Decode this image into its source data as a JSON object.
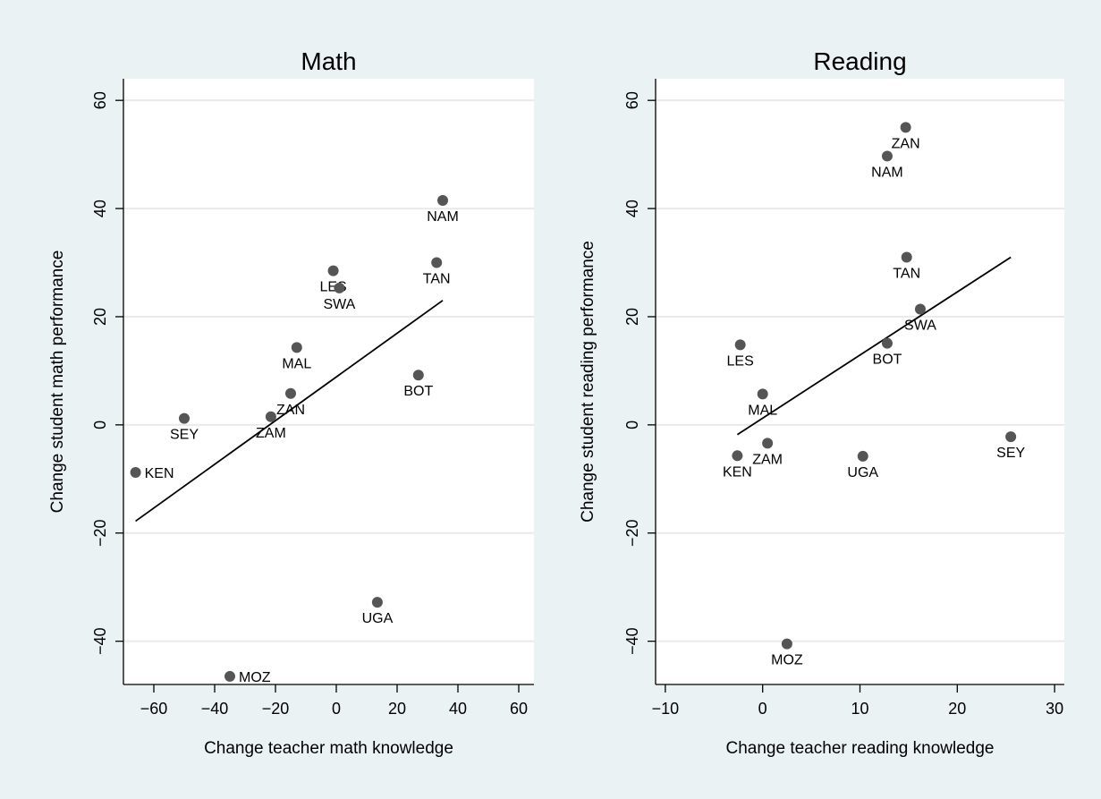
{
  "style": {
    "outer_background": "#eaf2f3",
    "plot_background": "#ffffff",
    "gridline_color": "#eaeaea",
    "point_color": "#555555",
    "line_color": "#000000"
  },
  "chart_data": [
    {
      "type": "scatter",
      "title": "Math",
      "xlabel": "Change teacher math knowledge",
      "ylabel": "Change student math performance",
      "xlim": [
        -70,
        65
      ],
      "ylim": [
        -48,
        64
      ],
      "xticks": [
        -60,
        -40,
        -20,
        0,
        20,
        40,
        60
      ],
      "yticks": [
        -40,
        -20,
        0,
        20,
        40,
        60
      ],
      "grid": true,
      "points": [
        {
          "label": "NAM",
          "x": 35,
          "y": 41.5,
          "label_pos": "below"
        },
        {
          "label": "TAN",
          "x": 33,
          "y": 30,
          "label_pos": "below"
        },
        {
          "label": "LES",
          "x": -1,
          "y": 28.5,
          "label_pos": "below"
        },
        {
          "label": "SWA",
          "x": 1,
          "y": 25.3,
          "label_pos": "below"
        },
        {
          "label": "MAL",
          "x": -13,
          "y": 14.3,
          "label_pos": "below"
        },
        {
          "label": "BOT",
          "x": 27,
          "y": 9.2,
          "label_pos": "below"
        },
        {
          "label": "ZAN",
          "x": -15,
          "y": 5.8,
          "label_pos": "below"
        },
        {
          "label": "ZAM",
          "x": -21.5,
          "y": 1.5,
          "label_pos": "below"
        },
        {
          "label": "SEY",
          "x": -50,
          "y": 1.2,
          "label_pos": "below"
        },
        {
          "label": "KEN",
          "x": -66,
          "y": -8.8,
          "label_pos": "right"
        },
        {
          "label": "UGA",
          "x": 13.5,
          "y": -32.8,
          "label_pos": "below"
        },
        {
          "label": "MOZ",
          "x": -35,
          "y": -46.5,
          "label_pos": "right"
        }
      ],
      "fit_line": {
        "x": [
          -66,
          35
        ],
        "y": [
          -17.8,
          23
        ]
      }
    },
    {
      "type": "scatter",
      "title": "Reading",
      "xlabel": "Change teacher reading knowledge",
      "ylabel": "Change student reading performance",
      "xlim": [
        -11,
        31
      ],
      "ylim": [
        -48,
        64
      ],
      "xticks": [
        -10,
        0,
        10,
        20,
        30
      ],
      "yticks": [
        -40,
        -20,
        0,
        20,
        40,
        60
      ],
      "grid": true,
      "points": [
        {
          "label": "ZAN",
          "x": 14.7,
          "y": 55,
          "label_pos": "below"
        },
        {
          "label": "NAM",
          "x": 12.8,
          "y": 49.7,
          "label_pos": "below"
        },
        {
          "label": "TAN",
          "x": 14.8,
          "y": 31,
          "label_pos": "below"
        },
        {
          "label": "SWA",
          "x": 16.2,
          "y": 21.4,
          "label_pos": "below"
        },
        {
          "label": "BOT",
          "x": 12.8,
          "y": 15.1,
          "label_pos": "below"
        },
        {
          "label": "LES",
          "x": -2.3,
          "y": 14.8,
          "label_pos": "below"
        },
        {
          "label": "MAL",
          "x": 0,
          "y": 5.7,
          "label_pos": "below"
        },
        {
          "label": "ZAM",
          "x": 0.5,
          "y": -3.4,
          "label_pos": "below"
        },
        {
          "label": "KEN",
          "x": -2.6,
          "y": -5.7,
          "label_pos": "below"
        },
        {
          "label": "UGA",
          "x": 10.3,
          "y": -5.8,
          "label_pos": "below"
        },
        {
          "label": "SEY",
          "x": 25.5,
          "y": -2.2,
          "label_pos": "below"
        },
        {
          "label": "MOZ",
          "x": 2.5,
          "y": -40.5,
          "label_pos": "below"
        }
      ],
      "fit_line": {
        "x": [
          -2.6,
          25.5
        ],
        "y": [
          -1.8,
          31
        ]
      }
    }
  ]
}
